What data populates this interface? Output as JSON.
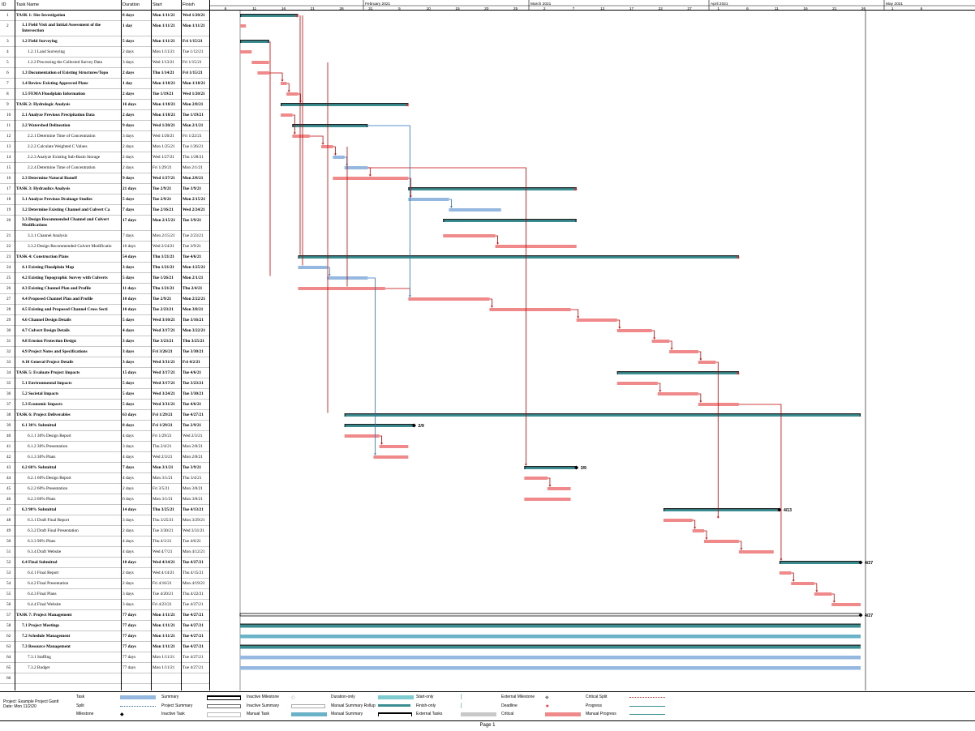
{
  "headers": {
    "id": "ID",
    "name": "Task Name",
    "duration": "Duration",
    "start": "Start",
    "finish": "Finish"
  },
  "months": [
    "February 2021",
    "March 2021",
    "April 2021",
    "May 2021"
  ],
  "days": [
    "6",
    "11",
    "16",
    "21",
    "26",
    "31",
    "5",
    "10",
    "15",
    "20",
    "25",
    "2",
    "7",
    "12",
    "17",
    "22",
    "27",
    "1",
    "6",
    "11",
    "16",
    "21",
    "26",
    "1",
    "6"
  ],
  "tasks": [
    {
      "id": "1",
      "name": "TASK 1: Site Investigation",
      "duration": "8 days",
      "start": "Mon 1/11/21",
      "finish": "Wed 1/20/21",
      "level": 0,
      "bold": true
    },
    {
      "id": "2",
      "name": "1.1 Field Visit and Initial Assessment of the Intersection",
      "duration": "1 day",
      "start": "Mon 1/11/21",
      "finish": "Mon 1/11/21",
      "level": 1,
      "bold": true,
      "tall": true
    },
    {
      "id": "3",
      "name": "1.2 Field Surveying",
      "duration": "5 days",
      "start": "Mon 1/11/21",
      "finish": "Fri 1/15/21",
      "level": 1,
      "bold": true
    },
    {
      "id": "4",
      "name": "1.2.1 Land Surveying",
      "duration": "2 days",
      "start": "Mon 1/11/21",
      "finish": "Tue 1/12/21",
      "level": 2,
      "bold": false
    },
    {
      "id": "5",
      "name": "1.2.2 Processing the Collected Survey Data",
      "duration": "3 days",
      "start": "Wed 1/13/21",
      "finish": "Fri 1/15/21",
      "level": 2,
      "bold": false
    },
    {
      "id": "6",
      "name": "1.3 Documentation of Existing Structures/Topo",
      "duration": "2 days",
      "start": "Thu 1/14/21",
      "finish": "Fri 1/15/21",
      "level": 1,
      "bold": true
    },
    {
      "id": "7",
      "name": "1.4 Review Existing Approved Plans",
      "duration": "1 day",
      "start": "Mon 1/18/21",
      "finish": "Mon 1/18/21",
      "level": 1,
      "bold": true
    },
    {
      "id": "8",
      "name": "1.5 FEMA Floodplain Information",
      "duration": "2 days",
      "start": "Tue 1/19/21",
      "finish": "Wed 1/20/21",
      "level": 1,
      "bold": true
    },
    {
      "id": "9",
      "name": "TASK 2: Hydrologic Analysis",
      "duration": "16 days",
      "start": "Mon 1/18/21",
      "finish": "Mon 2/8/21",
      "level": 0,
      "bold": true
    },
    {
      "id": "10",
      "name": "2.1 Analyze Previous Precipitation Data",
      "duration": "2 days",
      "start": "Mon 1/18/21",
      "finish": "Tue 1/19/21",
      "level": 1,
      "bold": true
    },
    {
      "id": "11",
      "name": "2.2 Watershed Delineation",
      "duration": "9 days",
      "start": "Wed 1/20/21",
      "finish": "Mon 2/1/21",
      "level": 1,
      "bold": true
    },
    {
      "id": "12",
      "name": "2.2.1 Determine Time of Concentration",
      "duration": "3 days",
      "start": "Wed 1/20/21",
      "finish": "Fri 1/22/21",
      "level": 2,
      "bold": false
    },
    {
      "id": "13",
      "name": "2.2.2 Calculate Weighted C Values",
      "duration": "2 days",
      "start": "Mon 1/25/21",
      "finish": "Tue 1/26/21",
      "level": 2,
      "bold": false
    },
    {
      "id": "14",
      "name": "2.2.3 Analyze Existing Sub-Basin Storage",
      "duration": "2 days",
      "start": "Wed 1/27/21",
      "finish": "Thu 1/28/21",
      "level": 2,
      "bold": false
    },
    {
      "id": "15",
      "name": "2.2.4 Determine Time of Concentration",
      "duration": "2 days",
      "start": "Fri 1/29/21",
      "finish": "Mon 2/1/21",
      "level": 2,
      "bold": false
    },
    {
      "id": "16",
      "name": "2.3 Determine Natural Runoff",
      "duration": "9 days",
      "start": "Wed 1/27/21",
      "finish": "Mon 2/8/21",
      "level": 1,
      "bold": true
    },
    {
      "id": "17",
      "name": "TASK 3: Hydraulics Analysis",
      "duration": "21 days",
      "start": "Tue 2/9/21",
      "finish": "Tue 3/9/21",
      "level": 0,
      "bold": true
    },
    {
      "id": "18",
      "name": "3.1 Analyze Previous Drainage Studies",
      "duration": "5 days",
      "start": "Tue 2/9/21",
      "finish": "Mon 2/15/21",
      "level": 1,
      "bold": true
    },
    {
      "id": "19",
      "name": "3.2 Determine Existing Channel and Culvert Ca",
      "duration": "7 days",
      "start": "Tue 2/16/21",
      "finish": "Wed 2/24/21",
      "level": 1,
      "bold": true
    },
    {
      "id": "20",
      "name": "3.3 Design Recommended Channel and Culvert Modifications",
      "duration": "17 days",
      "start": "Mon 2/15/21",
      "finish": "Tue 3/9/21",
      "level": 1,
      "bold": true,
      "tall": true
    },
    {
      "id": "21",
      "name": "3.3.1 Channel  Analysis",
      "duration": "7 days",
      "start": "Mon 2/15/21",
      "finish": "Tue 2/23/21",
      "level": 2,
      "bold": false
    },
    {
      "id": "22",
      "name": "3.3.2 Design Recommended Culvert Modificatio",
      "duration": "10 days",
      "start": "Wed 2/24/21",
      "finish": "Tue 3/9/21",
      "level": 2,
      "bold": false
    },
    {
      "id": "23",
      "name": "TASK 4: Construction Plans",
      "duration": "54 days",
      "start": "Thu 1/21/21",
      "finish": "Tue 4/6/21",
      "level": 0,
      "bold": true
    },
    {
      "id": "24",
      "name": "4.1 Existing Floodplain Map",
      "duration": "3 days",
      "start": "Thu 1/21/21",
      "finish": "Mon 1/25/21",
      "level": 1,
      "bold": true
    },
    {
      "id": "25",
      "name": "4.2 Existing Topographic Survey with Culverts",
      "duration": "5 days",
      "start": "Tue 1/26/21",
      "finish": "Mon 2/1/21",
      "level": 1,
      "bold": true
    },
    {
      "id": "26",
      "name": "4.3 Existing Channel Plan and Profile",
      "duration": "11 days",
      "start": "Thu 1/21/21",
      "finish": "Thu 2/4/21",
      "level": 1,
      "bold": true
    },
    {
      "id": "27",
      "name": "4.4 Proposed Channel Plan and Profile",
      "duration": "10 days",
      "start": "Tue 2/9/21",
      "finish": "Mon 2/22/21",
      "level": 1,
      "bold": true
    },
    {
      "id": "28",
      "name": "4.5 Existing and Proposed Channel Cross Secti",
      "duration": "10 days",
      "start": "Tue 2/23/21",
      "finish": "Mon 3/8/21",
      "level": 1,
      "bold": true
    },
    {
      "id": "29",
      "name": "4.6 Channel Design Details",
      "duration": "5 days",
      "start": "Wed 3/10/21",
      "finish": "Tue 3/16/21",
      "level": 1,
      "bold": true
    },
    {
      "id": "30",
      "name": "4.7 Culvert Design Details",
      "duration": "4 days",
      "start": "Wed 3/17/21",
      "finish": "Mon 3/22/21",
      "level": 1,
      "bold": true
    },
    {
      "id": "31",
      "name": "4.8 Erosion Protection Design",
      "duration": "3 days",
      "start": "Tue 3/23/21",
      "finish": "Thu 3/25/21",
      "level": 1,
      "bold": true
    },
    {
      "id": "32",
      "name": "4.9 Project Notes and Specifications",
      "duration": "3 days",
      "start": "Fri 3/26/21",
      "finish": "Tue 3/30/21",
      "level": 1,
      "bold": true
    },
    {
      "id": "33",
      "name": "4.10 General Project Details",
      "duration": "3 days",
      "start": "Wed 3/31/21",
      "finish": "Fri 4/2/21",
      "level": 1,
      "bold": true
    },
    {
      "id": "34",
      "name": "TASK 5: Evaluate Project Impacts",
      "duration": "15 days",
      "start": "Wed 3/17/21",
      "finish": "Tue 4/6/21",
      "level": 0,
      "bold": true
    },
    {
      "id": "35",
      "name": "5.1 Environmental Impacts",
      "duration": "5 days",
      "start": "Wed 3/17/21",
      "finish": "Tue 3/23/21",
      "level": 1,
      "bold": true
    },
    {
      "id": "36",
      "name": "5.2 Societal Impacts",
      "duration": "5 days",
      "start": "Wed 3/24/21",
      "finish": "Tue 3/30/21",
      "level": 1,
      "bold": true
    },
    {
      "id": "37",
      "name": "5.3 Economic Impacts",
      "duration": "5 days",
      "start": "Wed 3/31/21",
      "finish": "Tue 4/6/21",
      "level": 1,
      "bold": true
    },
    {
      "id": "38",
      "name": "TASK 6: Project Deliverables",
      "duration": "63 days",
      "start": "Fri 1/29/21",
      "finish": "Tue 4/27/21",
      "level": 0,
      "bold": true
    },
    {
      "id": "39",
      "name": "6.1 30% Submittal",
      "duration": "8 days",
      "start": "Fri 1/29/21",
      "finish": "Tue 2/9/21",
      "level": 1,
      "bold": true
    },
    {
      "id": "40",
      "name": "6.1.1 30% Design Report",
      "duration": "4 days",
      "start": "Fri 1/29/21",
      "finish": "Wed 2/3/21",
      "level": 2,
      "bold": false
    },
    {
      "id": "41",
      "name": "6.1.2 30% Presentation",
      "duration": "3 days",
      "start": "Thu 2/4/21",
      "finish": "Mon 2/8/21",
      "level": 2,
      "bold": false
    },
    {
      "id": "42",
      "name": "6.1.3 30% Plans",
      "duration": "4 days",
      "start": "Wed 2/3/21",
      "finish": "Mon 2/8/21",
      "level": 2,
      "bold": false
    },
    {
      "id": "43",
      "name": "6.2 60% Submittal",
      "duration": "7 days",
      "start": "Mon 3/1/21",
      "finish": "Tue 3/9/21",
      "level": 1,
      "bold": true
    },
    {
      "id": "44",
      "name": "6.2.1 60% Design Report",
      "duration": "4 days",
      "start": "Mon 3/1/21",
      "finish": "Thu 3/4/21",
      "level": 2,
      "bold": false
    },
    {
      "id": "45",
      "name": "6.2.2 60% Presentation",
      "duration": "2 days",
      "start": "Fri 3/5/21",
      "finish": "Mon 3/8/21",
      "level": 2,
      "bold": false
    },
    {
      "id": "46",
      "name": "6.2.3 60% Plans",
      "duration": "6 days",
      "start": "Mon 3/1/21",
      "finish": "Mon 3/8/21",
      "level": 2,
      "bold": false
    },
    {
      "id": "47",
      "name": "6.3 90% Submittal",
      "duration": "14 days",
      "start": "Thu 3/25/21",
      "finish": "Tue 4/13/21",
      "level": 1,
      "bold": true
    },
    {
      "id": "48",
      "name": "6.3.1 Draft Final Report",
      "duration": "3 days",
      "start": "Thu 3/25/21",
      "finish": "Mon 3/29/21",
      "level": 2,
      "bold": false
    },
    {
      "id": "49",
      "name": "6.3.2 Draft Final Presentation",
      "duration": "2 days",
      "start": "Tue 3/30/21",
      "finish": "Wed 3/31/21",
      "level": 2,
      "bold": false
    },
    {
      "id": "50",
      "name": "6.3.3 90% Plans",
      "duration": "4 days",
      "start": "Thu 4/1/21",
      "finish": "Tue 4/6/21",
      "level": 2,
      "bold": false
    },
    {
      "id": "51",
      "name": "6.3.4 Draft Website",
      "duration": "4 days",
      "start": "Wed 4/7/21",
      "finish": "Mon 4/12/21",
      "level": 2,
      "bold": false
    },
    {
      "id": "52",
      "name": "6.4 Final Submittal",
      "duration": "10 days",
      "start": "Wed 4/14/21",
      "finish": "Tue 4/27/21",
      "level": 1,
      "bold": true
    },
    {
      "id": "53",
      "name": "6.4.1 Final Report",
      "duration": "2 days",
      "start": "Wed 4/14/21",
      "finish": "Thu 4/15/21",
      "level": 2,
      "bold": false
    },
    {
      "id": "54",
      "name": "6.4.2 Final Presentation",
      "duration": "2 days",
      "start": "Fri 4/16/21",
      "finish": "Mon 4/19/21",
      "level": 2,
      "bold": false
    },
    {
      "id": "55",
      "name": "6.4.3 Final Plans",
      "duration": "3 days",
      "start": "Tue 4/20/21",
      "finish": "Thu 4/22/21",
      "level": 2,
      "bold": false
    },
    {
      "id": "56",
      "name": "6.4.4 Final Website",
      "duration": "3 days",
      "start": "Fri 4/23/21",
      "finish": "Tue 4/27/21",
      "level": 2,
      "bold": false
    },
    {
      "id": "57",
      "name": "TASK 7: Project Management",
      "duration": "77 days",
      "start": "Mon 1/11/21",
      "finish": "Tue 4/27/21",
      "level": 0,
      "bold": true
    },
    {
      "id": "58",
      "name": "7.1 Project Meetings",
      "duration": "77 days",
      "start": "Mon 1/11/21",
      "finish": "Tue 4/27/21",
      "level": 1,
      "bold": true
    },
    {
      "id": "62",
      "name": "7.2 Schedule Management",
      "duration": "77 days",
      "start": "Mon 1/11/21",
      "finish": "Tue 4/27/21",
      "level": 1,
      "bold": true
    },
    {
      "id": "63",
      "name": "7.3 Resource Management",
      "duration": "77 days",
      "start": "Mon 1/11/21",
      "finish": "Tue 4/27/21",
      "level": 1,
      "bold": true
    },
    {
      "id": "64",
      "name": "7.3.1 Staffing",
      "duration": "77 days",
      "start": "Mon 1/11/21",
      "finish": "Tue 4/27/21",
      "level": 2,
      "bold": false
    },
    {
      "id": "65",
      "name": "7.3.2 Budget",
      "duration": "77 days",
      "start": "Mon 1/11/21",
      "finish": "Tue 4/27/21",
      "level": 2,
      "bold": false
    },
    {
      "id": "66",
      "name": "",
      "duration": "",
      "start": "",
      "finish": "",
      "level": 0,
      "bold": false
    }
  ],
  "milestones": [
    {
      "task": "39",
      "label": "2/9"
    },
    {
      "task": "43",
      "label": "3/9"
    },
    {
      "task": "47",
      "label": "4/13"
    },
    {
      "task": "52",
      "label": "4/27"
    },
    {
      "task": "57",
      "label": "4/27"
    }
  ],
  "colors": {
    "critical": "#f08a8a",
    "task": "#94b8e0",
    "summary": "#3a8d90",
    "arrow_red": "#c00000",
    "arrow_blue": "#2a6fc0"
  },
  "legend": {
    "project_label": "Project: Example Project Gantt",
    "date_label": "Date: Mon 11/2/20",
    "items": [
      {
        "label": "Task"
      },
      {
        "label": "Split"
      },
      {
        "label": "Milestone"
      },
      {
        "label": "Summary"
      },
      {
        "label": "Project Summary"
      },
      {
        "label": "Inactive Task"
      },
      {
        "label": "Inactive Milestone"
      },
      {
        "label": "Inactive Summary"
      },
      {
        "label": "Manual Task"
      },
      {
        "label": "Duration-only"
      },
      {
        "label": "Manual Summary Rollup"
      },
      {
        "label": "Manual Summary"
      },
      {
        "label": "Start-only"
      },
      {
        "label": "Finish-only"
      },
      {
        "label": "External Tasks"
      },
      {
        "label": "External Milestone"
      },
      {
        "label": "Deadline"
      },
      {
        "label": "Critical"
      },
      {
        "label": "Critical Split"
      },
      {
        "label": "Progress"
      },
      {
        "label": "Manual Progress"
      }
    ]
  },
  "footer": "Page 1"
}
